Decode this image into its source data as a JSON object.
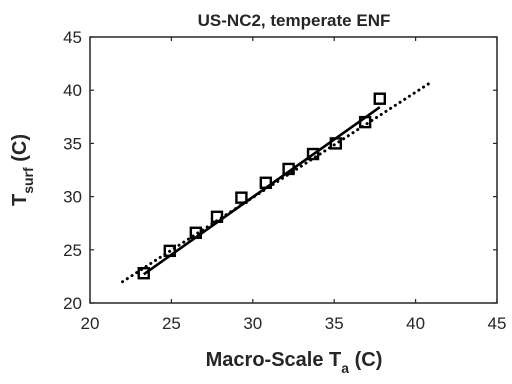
{
  "chart_data": {
    "type": "scatter",
    "title": "US-NC2, temperate ENF",
    "xlabel": "Macro-Scale T",
    "xlabel_sub": "a",
    "xlabel_unit": " (C)",
    "ylabel": "T",
    "ylabel_sub": "surf",
    "ylabel_unit": " (C)",
    "xlim": [
      20,
      45
    ],
    "ylim": [
      20,
      45
    ],
    "xticks": [
      20,
      25,
      30,
      35,
      40,
      45
    ],
    "yticks": [
      20,
      25,
      30,
      35,
      40,
      45
    ],
    "grid": false,
    "series": [
      {
        "kind": "markers",
        "marker": "square",
        "x": [
          23.3,
          24.9,
          26.5,
          27.8,
          29.3,
          30.8,
          32.2,
          33.7,
          35.1,
          36.9,
          37.8
        ],
        "y": [
          22.8,
          24.9,
          26.6,
          28.1,
          29.9,
          31.3,
          32.6,
          34.0,
          35.0,
          37.0,
          39.2
        ]
      },
      {
        "kind": "fit",
        "style": "solid",
        "x": [
          23.3,
          37.8
        ],
        "y": [
          22.7,
          38.4
        ]
      },
      {
        "kind": "reference",
        "style": "dotted",
        "x": [
          22.0,
          41.0
        ],
        "y": [
          22.0,
          40.8
        ]
      }
    ]
  }
}
